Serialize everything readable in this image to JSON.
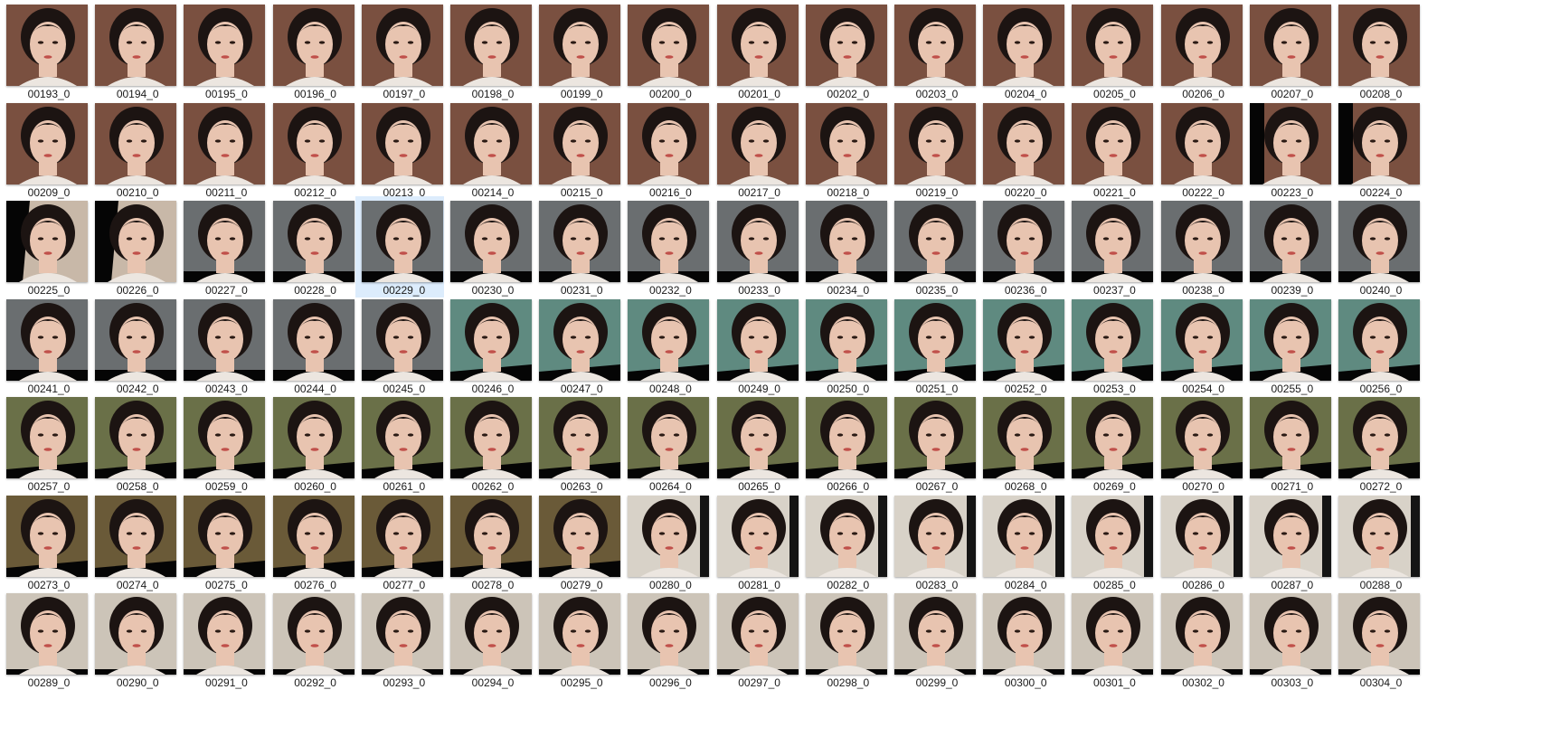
{
  "selected": "00229_0",
  "items": [
    {
      "name": "00193_0",
      "bg": "#7a5040",
      "frame": "a"
    },
    {
      "name": "00194_0",
      "bg": "#7a5040",
      "frame": "a"
    },
    {
      "name": "00195_0",
      "bg": "#7a5040",
      "frame": "a"
    },
    {
      "name": "00196_0",
      "bg": "#7a5040",
      "frame": "a"
    },
    {
      "name": "00197_0",
      "bg": "#7a5040",
      "frame": "a"
    },
    {
      "name": "00198_0",
      "bg": "#7a5040",
      "frame": "a"
    },
    {
      "name": "00199_0",
      "bg": "#7a5040",
      "frame": "a"
    },
    {
      "name": "00200_0",
      "bg": "#7a5040",
      "frame": "a"
    },
    {
      "name": "00201_0",
      "bg": "#7a5040",
      "frame": "a"
    },
    {
      "name": "00202_0",
      "bg": "#7a5040",
      "frame": "a"
    },
    {
      "name": "00203_0",
      "bg": "#7a5040",
      "frame": "a"
    },
    {
      "name": "00204_0",
      "bg": "#7a5040",
      "frame": "a"
    },
    {
      "name": "00205_0",
      "bg": "#7a5040",
      "frame": "a"
    },
    {
      "name": "00206_0",
      "bg": "#7a5040",
      "frame": "a"
    },
    {
      "name": "00207_0",
      "bg": "#7a5040",
      "frame": "a"
    },
    {
      "name": "00208_0",
      "bg": "#7a5040",
      "frame": "a"
    },
    {
      "name": "00209_0",
      "bg": "#7a5040",
      "frame": "a"
    },
    {
      "name": "00210_0",
      "bg": "#7a5040",
      "frame": "a"
    },
    {
      "name": "00211_0",
      "bg": "#7a5040",
      "frame": "a"
    },
    {
      "name": "00212_0",
      "bg": "#7a5040",
      "frame": "a"
    },
    {
      "name": "00213_0",
      "bg": "#7a5040",
      "frame": "a"
    },
    {
      "name": "00214_0",
      "bg": "#7a5040",
      "frame": "a"
    },
    {
      "name": "00215_0",
      "bg": "#7a5040",
      "frame": "a"
    },
    {
      "name": "00216_0",
      "bg": "#7a5040",
      "frame": "a"
    },
    {
      "name": "00217_0",
      "bg": "#7a5040",
      "frame": "a"
    },
    {
      "name": "00218_0",
      "bg": "#7a5040",
      "frame": "a"
    },
    {
      "name": "00219_0",
      "bg": "#7a5040",
      "frame": "a"
    },
    {
      "name": "00220_0",
      "bg": "#7a5040",
      "frame": "a"
    },
    {
      "name": "00221_0",
      "bg": "#7a5040",
      "frame": "a"
    },
    {
      "name": "00222_0",
      "bg": "#7a5040",
      "frame": "a"
    },
    {
      "name": "00223_0",
      "bg": "#7a5040",
      "frame": "b"
    },
    {
      "name": "00224_0",
      "bg": "#7a5040",
      "frame": "b"
    },
    {
      "name": "00225_0",
      "bg": "#c8b8a8",
      "frame": "c"
    },
    {
      "name": "00226_0",
      "bg": "#c8b8a8",
      "frame": "c"
    },
    {
      "name": "00227_0",
      "bg": "#6a6e70",
      "frame": "d"
    },
    {
      "name": "00228_0",
      "bg": "#6a6e70",
      "frame": "d"
    },
    {
      "name": "00229_0",
      "bg": "#6a6e70",
      "frame": "d"
    },
    {
      "name": "00230_0",
      "bg": "#6a6e70",
      "frame": "d"
    },
    {
      "name": "00231_0",
      "bg": "#6a6e70",
      "frame": "d"
    },
    {
      "name": "00232_0",
      "bg": "#6a6e70",
      "frame": "d"
    },
    {
      "name": "00233_0",
      "bg": "#6a6e70",
      "frame": "d"
    },
    {
      "name": "00234_0",
      "bg": "#6a6e70",
      "frame": "d"
    },
    {
      "name": "00235_0",
      "bg": "#6a6e70",
      "frame": "d"
    },
    {
      "name": "00236_0",
      "bg": "#6a6e70",
      "frame": "d"
    },
    {
      "name": "00237_0",
      "bg": "#6a6e70",
      "frame": "d"
    },
    {
      "name": "00238_0",
      "bg": "#6a6e70",
      "frame": "d"
    },
    {
      "name": "00239_0",
      "bg": "#6a6e70",
      "frame": "d"
    },
    {
      "name": "00240_0",
      "bg": "#6a6e70",
      "frame": "d"
    },
    {
      "name": "00241_0",
      "bg": "#6a6e70",
      "frame": "d"
    },
    {
      "name": "00242_0",
      "bg": "#6a6e70",
      "frame": "d"
    },
    {
      "name": "00243_0",
      "bg": "#6a6e70",
      "frame": "d"
    },
    {
      "name": "00244_0",
      "bg": "#6a6e70",
      "frame": "d"
    },
    {
      "name": "00245_0",
      "bg": "#6a6e70",
      "frame": "d"
    },
    {
      "name": "00246_0",
      "bg": "#5f8a80",
      "frame": "e"
    },
    {
      "name": "00247_0",
      "bg": "#5f8a80",
      "frame": "e"
    },
    {
      "name": "00248_0",
      "bg": "#5f8a80",
      "frame": "e"
    },
    {
      "name": "00249_0",
      "bg": "#5f8a80",
      "frame": "e"
    },
    {
      "name": "00250_0",
      "bg": "#5f8a80",
      "frame": "e"
    },
    {
      "name": "00251_0",
      "bg": "#5f8a80",
      "frame": "e"
    },
    {
      "name": "00252_0",
      "bg": "#5f8a80",
      "frame": "e"
    },
    {
      "name": "00253_0",
      "bg": "#5f8a80",
      "frame": "e"
    },
    {
      "name": "00254_0",
      "bg": "#5f8a80",
      "frame": "e"
    },
    {
      "name": "00255_0",
      "bg": "#5f8a80",
      "frame": "e"
    },
    {
      "name": "00256_0",
      "bg": "#5f8a80",
      "frame": "e"
    },
    {
      "name": "00257_0",
      "bg": "#6a7048",
      "frame": "e"
    },
    {
      "name": "00258_0",
      "bg": "#6a7048",
      "frame": "e"
    },
    {
      "name": "00259_0",
      "bg": "#6a7048",
      "frame": "e"
    },
    {
      "name": "00260_0",
      "bg": "#6a7048",
      "frame": "e"
    },
    {
      "name": "00261_0",
      "bg": "#6a7048",
      "frame": "e"
    },
    {
      "name": "00262_0",
      "bg": "#6a7048",
      "frame": "e"
    },
    {
      "name": "00263_0",
      "bg": "#6a7048",
      "frame": "e"
    },
    {
      "name": "00264_0",
      "bg": "#6a7048",
      "frame": "e"
    },
    {
      "name": "00265_0",
      "bg": "#6a7048",
      "frame": "e"
    },
    {
      "name": "00266_0",
      "bg": "#6a7048",
      "frame": "e"
    },
    {
      "name": "00267_0",
      "bg": "#6a7048",
      "frame": "e"
    },
    {
      "name": "00268_0",
      "bg": "#6a7048",
      "frame": "e"
    },
    {
      "name": "00269_0",
      "bg": "#6a7048",
      "frame": "e"
    },
    {
      "name": "00270_0",
      "bg": "#6a7048",
      "frame": "e"
    },
    {
      "name": "00271_0",
      "bg": "#6a7048",
      "frame": "e"
    },
    {
      "name": "00272_0",
      "bg": "#6a7048",
      "frame": "e"
    },
    {
      "name": "00273_0",
      "bg": "#6a5a38",
      "frame": "e"
    },
    {
      "name": "00274_0",
      "bg": "#6a5a38",
      "frame": "e"
    },
    {
      "name": "00275_0",
      "bg": "#6a5a38",
      "frame": "e"
    },
    {
      "name": "00276_0",
      "bg": "#6a5a38",
      "frame": "e"
    },
    {
      "name": "00277_0",
      "bg": "#6a5a38",
      "frame": "e"
    },
    {
      "name": "00278_0",
      "bg": "#6a5a38",
      "frame": "e"
    },
    {
      "name": "00279_0",
      "bg": "#6a5a38",
      "frame": "e"
    },
    {
      "name": "00280_0",
      "bg": "#d8d2c8",
      "frame": "f"
    },
    {
      "name": "00281_0",
      "bg": "#d8d2c8",
      "frame": "f"
    },
    {
      "name": "00282_0",
      "bg": "#d8d2c8",
      "frame": "f"
    },
    {
      "name": "00283_0",
      "bg": "#d8d2c8",
      "frame": "f"
    },
    {
      "name": "00284_0",
      "bg": "#d8d2c8",
      "frame": "f"
    },
    {
      "name": "00285_0",
      "bg": "#d8d2c8",
      "frame": "f"
    },
    {
      "name": "00286_0",
      "bg": "#d8d2c8",
      "frame": "f"
    },
    {
      "name": "00287_0",
      "bg": "#d8d2c8",
      "frame": "f"
    },
    {
      "name": "00288_0",
      "bg": "#d8d2c8",
      "frame": "f"
    },
    {
      "name": "00289_0",
      "bg": "#ccc4b8",
      "frame": "g"
    },
    {
      "name": "00290_0",
      "bg": "#ccc4b8",
      "frame": "g"
    },
    {
      "name": "00291_0",
      "bg": "#ccc4b8",
      "frame": "g"
    },
    {
      "name": "00292_0",
      "bg": "#ccc4b8",
      "frame": "g"
    },
    {
      "name": "00293_0",
      "bg": "#ccc4b8",
      "frame": "g"
    },
    {
      "name": "00294_0",
      "bg": "#ccc4b8",
      "frame": "g"
    },
    {
      "name": "00295_0",
      "bg": "#ccc4b8",
      "frame": "g"
    },
    {
      "name": "00296_0",
      "bg": "#ccc4b8",
      "frame": "g"
    },
    {
      "name": "00297_0",
      "bg": "#ccc4b8",
      "frame": "g"
    },
    {
      "name": "00298_0",
      "bg": "#ccc4b8",
      "frame": "g"
    },
    {
      "name": "00299_0",
      "bg": "#ccc4b8",
      "frame": "g"
    },
    {
      "name": "00300_0",
      "bg": "#ccc4b8",
      "frame": "g"
    },
    {
      "name": "00301_0",
      "bg": "#ccc4b8",
      "frame": "g"
    },
    {
      "name": "00302_0",
      "bg": "#ccc4b8",
      "frame": "g"
    },
    {
      "name": "00303_0",
      "bg": "#ccc4b8",
      "frame": "g"
    },
    {
      "name": "00304_0",
      "bg": "#ccc4b8",
      "frame": "g"
    }
  ],
  "colors": {
    "selection": "#dcecfc",
    "caption": "#1a1a1a",
    "hair": "#1c1412",
    "skin": "#e8c4b0",
    "lips": "#c0504a"
  }
}
